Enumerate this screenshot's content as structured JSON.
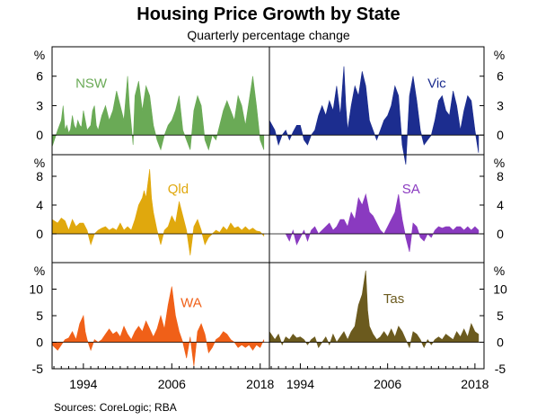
{
  "title": "Housing Price Growth by State",
  "subtitle": "Quarterly percentage change",
  "source": "Sources:   CoreLogic; RBA",
  "unit_label": "%",
  "x_ticks": [
    1994,
    2006,
    2018
  ],
  "chart_data": [
    {
      "type": "area",
      "name": "NSW",
      "color": "#6aaa56",
      "yticks": [
        0,
        3,
        6
      ],
      "ylim": [
        -2,
        9
      ],
      "x": [
        1989.75,
        1990.5,
        1991,
        1991.25,
        1991.5,
        1991.75,
        1992,
        1992.25,
        1992.5,
        1992.75,
        1993,
        1993.25,
        1993.5,
        1993.75,
        1994,
        1994.5,
        1995,
        1995.25,
        1995.5,
        1995.75,
        1996,
        1996.5,
        1997,
        1997.5,
        1998,
        1998.5,
        1999,
        1999.5,
        2000,
        2000.25,
        2000.5,
        2000.75,
        2001,
        2001.5,
        2002,
        2002.5,
        2003,
        2003.5,
        2004,
        2004.5,
        2005,
        2005.5,
        2006,
        2006.5,
        2007,
        2007.5,
        2008,
        2008.5,
        2008.75,
        2009,
        2009.5,
        2010,
        2010.5,
        2011,
        2011.5,
        2012,
        2012.5,
        2013,
        2013.5,
        2014,
        2014.5,
        2015,
        2015.5,
        2016,
        2016.5,
        2017,
        2017.5,
        2018,
        2018.5
      ],
      "values": [
        -1.2,
        0.5,
        1.5,
        3.0,
        0.5,
        1.0,
        0.2,
        0.6,
        2.0,
        1.0,
        0.6,
        1.5,
        1.0,
        0.8,
        2.5,
        0.5,
        1.0,
        2.5,
        3.0,
        1.0,
        0.5,
        2.0,
        3.0,
        1.5,
        2.5,
        4.5,
        3.0,
        1.5,
        6.0,
        3.0,
        1.0,
        -1.0,
        4.0,
        5.5,
        2.5,
        5.0,
        4.0,
        1.0,
        -0.5,
        -1.5,
        0.0,
        1.0,
        1.5,
        2.5,
        4.0,
        0.5,
        -0.5,
        -1.5,
        0.5,
        2.5,
        4.0,
        3.0,
        -0.5,
        -1.5,
        0.0,
        -0.5,
        1.0,
        2.5,
        3.5,
        2.5,
        1.5,
        4.0,
        3.0,
        1.0,
        3.5,
        6.0,
        3.0,
        -0.5,
        -1.5
      ]
    },
    {
      "type": "area",
      "name": "Vic",
      "color": "#1c2d8f",
      "yticks": [
        0,
        3,
        6
      ],
      "ylim": [
        -2,
        9
      ],
      "x": [
        1989.75,
        1990.5,
        1991,
        1991.5,
        1992,
        1992.5,
        1993,
        1993.5,
        1994,
        1994.5,
        1995,
        1995.5,
        1996,
        1996.5,
        1997,
        1997.5,
        1998,
        1998.5,
        1999,
        1999.5,
        2000,
        2000.25,
        2000.5,
        2001,
        2001.5,
        2002,
        2002.5,
        2003,
        2003.5,
        2004,
        2004.5,
        2005,
        2005.5,
        2006,
        2006.5,
        2007,
        2007.5,
        2008,
        2008.5,
        2009,
        2009.5,
        2010,
        2010.5,
        2011,
        2011.5,
        2012,
        2012.5,
        2013,
        2013.5,
        2014,
        2014.5,
        2015,
        2015.5,
        2016,
        2016.5,
        2017,
        2017.5,
        2018,
        2018.5
      ],
      "values": [
        1.5,
        0.5,
        -1.0,
        0.0,
        0.5,
        -0.5,
        0.3,
        1.0,
        1.0,
        -0.5,
        -1.0,
        0.0,
        0.5,
        2.0,
        3.0,
        2.0,
        3.5,
        2.5,
        5.0,
        2.0,
        7.0,
        3.0,
        0.5,
        3.0,
        5.0,
        4.0,
        6.5,
        5.0,
        1.5,
        0.5,
        -0.5,
        0.5,
        1.5,
        2.0,
        3.0,
        5.0,
        4.0,
        -1.0,
        -3.0,
        4.0,
        6.0,
        3.5,
        0.5,
        -1.0,
        -0.5,
        0.0,
        1.5,
        3.5,
        4.0,
        2.5,
        2.0,
        4.5,
        3.0,
        0.5,
        2.5,
        4.0,
        3.5,
        0.5,
        -1.8
      ]
    },
    {
      "type": "area",
      "name": "Qld",
      "color": "#e0a80d",
      "yticks": [
        0,
        4,
        8
      ],
      "ylim": [
        -4,
        11
      ],
      "x": [
        1989.75,
        1990.5,
        1991,
        1991.5,
        1992,
        1992.5,
        1993,
        1993.5,
        1994,
        1994.5,
        1995,
        1995.5,
        1996,
        1996.5,
        1997,
        1997.5,
        1998,
        1998.5,
        1999,
        1999.5,
        2000,
        2000.5,
        2001,
        2001.5,
        2002,
        2002.25,
        2002.5,
        2003,
        2003.25,
        2003.5,
        2004,
        2004.5,
        2005,
        2005.5,
        2006,
        2006.5,
        2007,
        2007.5,
        2008,
        2008.5,
        2009,
        2009.5,
        2010,
        2010.5,
        2011,
        2011.5,
        2012,
        2012.5,
        2013,
        2013.5,
        2014,
        2014.5,
        2015,
        2015.5,
        2016,
        2016.5,
        2017,
        2017.5,
        2018,
        2018.5
      ],
      "values": [
        2.0,
        1.5,
        2.2,
        1.8,
        0.5,
        2.0,
        1.0,
        1.5,
        1.5,
        0.5,
        -1.5,
        0.0,
        0.5,
        0.8,
        1.0,
        0.5,
        0.8,
        0.5,
        1.5,
        0.5,
        1.0,
        0.5,
        2.0,
        4.0,
        5.0,
        6.0,
        5.0,
        9.0,
        5.0,
        3.0,
        0.5,
        -1.5,
        0.5,
        1.0,
        2.5,
        1.5,
        4.5,
        2.5,
        0.5,
        -3.0,
        1.0,
        2.0,
        0.5,
        -1.5,
        -0.5,
        0.0,
        0.5,
        0.2,
        1.0,
        0.5,
        1.5,
        0.8,
        1.0,
        0.5,
        1.0,
        0.5,
        0.8,
        0.4,
        0.3,
        -0.3
      ]
    },
    {
      "type": "area",
      "name": "SA",
      "color": "#8a3ac0",
      "yticks": [
        0,
        4,
        8
      ],
      "ylim": [
        -4,
        11
      ],
      "x": [
        1992,
        1992.5,
        1993,
        1993.5,
        1994,
        1994.5,
        1995,
        1995.5,
        1996,
        1996.5,
        1997,
        1997.5,
        1998,
        1998.5,
        1999,
        1999.5,
        2000,
        2000.5,
        2001,
        2001.5,
        2002,
        2002.5,
        2003,
        2003.5,
        2004,
        2004.5,
        2005,
        2005.5,
        2006,
        2006.5,
        2007,
        2007.5,
        2008,
        2008.5,
        2009,
        2009.5,
        2010,
        2010.5,
        2011,
        2011.5,
        2012,
        2012.5,
        2013,
        2013.5,
        2014,
        2014.5,
        2015,
        2015.5,
        2016,
        2016.5,
        2017,
        2017.5,
        2018,
        2018.5
      ],
      "values": [
        0.0,
        -1.0,
        0.5,
        -1.5,
        -0.5,
        0.5,
        -1.0,
        0.5,
        1.0,
        0.0,
        0.5,
        1.0,
        1.5,
        0.5,
        1.0,
        2.0,
        2.0,
        1.0,
        3.0,
        2.0,
        5.0,
        4.0,
        5.5,
        3.0,
        2.5,
        1.5,
        0.5,
        0.0,
        1.0,
        2.0,
        3.0,
        5.5,
        2.0,
        -0.5,
        -2.5,
        1.5,
        1.0,
        -0.5,
        -1.0,
        0.0,
        -0.5,
        0.5,
        1.0,
        0.8,
        1.0,
        1.0,
        0.5,
        1.0,
        1.0,
        0.5,
        1.0,
        0.5,
        1.0,
        0.5
      ]
    },
    {
      "type": "area",
      "name": "WA",
      "color": "#f06018",
      "yticks": [
        -5,
        0,
        5,
        10
      ],
      "ylim": [
        -5,
        15
      ],
      "x": [
        1989.75,
        1990.5,
        1991,
        1991.5,
        1992,
        1992.5,
        1993,
        1993.5,
        1994,
        1994.25,
        1994.5,
        1995,
        1995.5,
        1996,
        1996.5,
        1997,
        1997.5,
        1998,
        1998.5,
        1999,
        1999.5,
        2000,
        2000.5,
        2001,
        2001.5,
        2002,
        2002.5,
        2003,
        2003.5,
        2004,
        2004.5,
        2005,
        2005.5,
        2006,
        2006.5,
        2007,
        2007.5,
        2008,
        2008.5,
        2009,
        2009.5,
        2010,
        2010.5,
        2011,
        2011.5,
        2012,
        2012.5,
        2013,
        2013.5,
        2014,
        2014.5,
        2015,
        2015.5,
        2016,
        2016.5,
        2017,
        2017.5,
        2018,
        2018.5
      ],
      "values": [
        -0.5,
        -1.5,
        -0.5,
        0.5,
        0.8,
        2.0,
        0.5,
        3.5,
        5.0,
        2.0,
        0.5,
        -1.5,
        0.5,
        0.0,
        0.5,
        1.5,
        2.5,
        1.5,
        2.0,
        1.0,
        3.0,
        1.5,
        0.5,
        2.0,
        3.0,
        2.0,
        4.0,
        2.5,
        1.0,
        2.5,
        5.0,
        2.5,
        7.0,
        10.5,
        5.0,
        2.0,
        0.0,
        -3.0,
        1.0,
        -4.5,
        2.0,
        3.5,
        1.5,
        -2.0,
        -1.0,
        0.5,
        1.0,
        2.0,
        1.5,
        0.5,
        0.0,
        -1.0,
        -0.5,
        -1.0,
        -0.5,
        -1.5,
        -0.5,
        -1.0,
        0.5
      ]
    },
    {
      "type": "area",
      "name": "Tas",
      "color": "#6b5a1e",
      "yticks": [
        -5,
        0,
        5,
        10
      ],
      "ylim": [
        -5,
        15
      ],
      "x": [
        1989.75,
        1990.5,
        1991,
        1991.5,
        1992,
        1992.5,
        1993,
        1993.5,
        1994,
        1994.5,
        1995,
        1995.5,
        1996,
        1996.5,
        1997,
        1997.5,
        1998,
        1998.5,
        1999,
        1999.5,
        2000,
        2000.5,
        2001,
        2001.5,
        2002,
        2002.5,
        2003,
        2003.25,
        2003.5,
        2004,
        2004.5,
        2005,
        2005.5,
        2006,
        2006.5,
        2007,
        2007.5,
        2008,
        2008.5,
        2009,
        2009.5,
        2010,
        2010.5,
        2011,
        2011.5,
        2012,
        2012.5,
        2013,
        2013.5,
        2014,
        2014.5,
        2015,
        2015.5,
        2016,
        2016.5,
        2017,
        2017.5,
        2018,
        2018.5
      ],
      "values": [
        2.0,
        0.5,
        1.5,
        -0.5,
        1.0,
        0.5,
        1.5,
        0.8,
        1.0,
        0.5,
        -0.5,
        0.5,
        1.0,
        -1.0,
        0.0,
        1.0,
        -0.5,
        1.5,
        0.0,
        1.0,
        2.0,
        0.5,
        2.0,
        3.0,
        7.0,
        9.0,
        13.5,
        6.0,
        3.0,
        1.5,
        0.5,
        1.0,
        2.0,
        1.0,
        2.5,
        1.0,
        3.0,
        2.0,
        0.5,
        -1.0,
        2.0,
        1.5,
        0.5,
        -1.0,
        0.5,
        -0.5,
        0.5,
        1.0,
        0.5,
        1.5,
        1.0,
        0.5,
        2.0,
        1.0,
        2.5,
        1.0,
        3.5,
        2.0,
        1.5
      ]
    }
  ]
}
